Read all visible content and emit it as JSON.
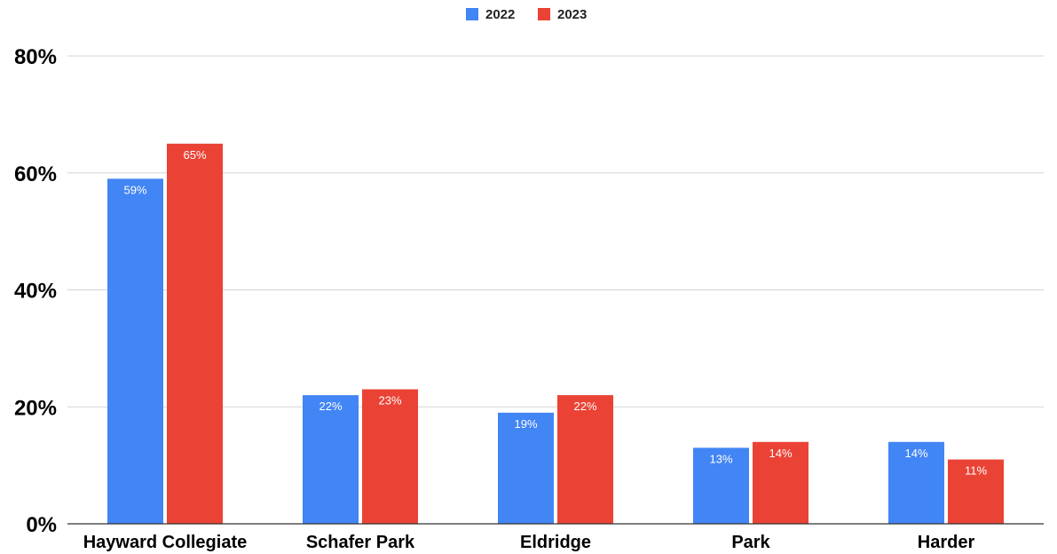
{
  "chart_data": {
    "type": "bar",
    "categories": [
      "Hayward Collegiate",
      "Schafer Park",
      "Eldridge",
      "Park",
      "Harder"
    ],
    "series": [
      {
        "name": "2022",
        "color": "#4285f4",
        "values": [
          59,
          22,
          19,
          13,
          14
        ],
        "labels": [
          "59%",
          "22%",
          "19%",
          "13%",
          "14%"
        ]
      },
      {
        "name": "2023",
        "color": "#ea4335",
        "values": [
          65,
          23,
          22,
          14,
          11
        ],
        "labels": [
          "65%",
          "23%",
          "22%",
          "14%",
          "11%"
        ]
      }
    ],
    "y_ticks": [
      {
        "value": 0,
        "label": "0%"
      },
      {
        "value": 20,
        "label": "20%"
      },
      {
        "value": 40,
        "label": "40%"
      },
      {
        "value": 60,
        "label": "60%"
      },
      {
        "value": 80,
        "label": "80%"
      }
    ],
    "ylim": [
      0,
      80
    ],
    "title": "",
    "xlabel": "",
    "ylabel": "",
    "grid": true,
    "legend_position": "top-center"
  }
}
